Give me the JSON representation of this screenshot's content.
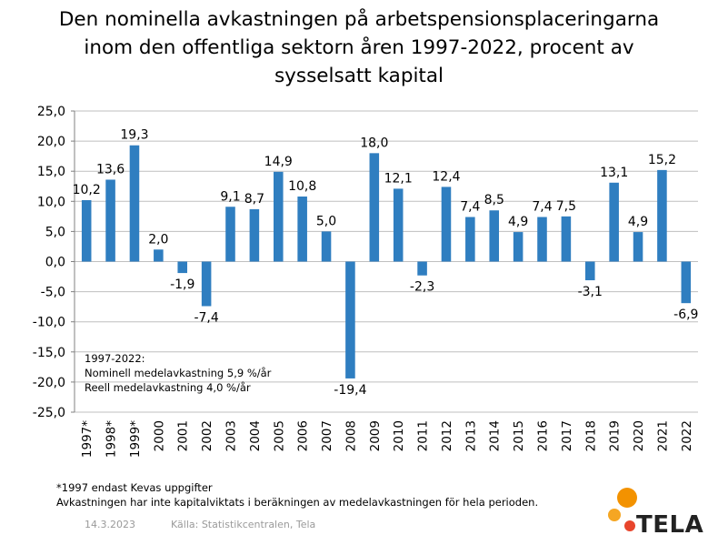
{
  "title_lines": [
    "Den nominella avkastningen på arbetspensionsplaceringarna",
    "inom den offentliga sektorn åren 1997-2022, procent av",
    "sysselsatt kapital"
  ],
  "annotation_lines": [
    "1997-2022:",
    "Nominell medelavkastning 5,9 %/år",
    "Reell medelavkastning 4,0 %/år"
  ],
  "footnote_lines": [
    "*1997 endast Kevas uppgifter",
    "Avkastningen har inte kapitalviktats i beräkningen av medelavkastningen för hela perioden."
  ],
  "date": "14.3.2023",
  "source": "Källa: Statistikcentralen, Tela",
  "logo_text": "TELA",
  "colors": {
    "bar": "#2f7ec0",
    "grid": "#bfbfbf",
    "logo_orange": "#f39200",
    "logo_red": "#e8452c"
  },
  "chart_data": {
    "type": "bar",
    "categories": [
      "1997*",
      "1998*",
      "1999*",
      "2000",
      "2001",
      "2002",
      "2003",
      "2004",
      "2005",
      "2006",
      "2007",
      "2008",
      "2009",
      "2010",
      "2011",
      "2012",
      "2013",
      "2014",
      "2015",
      "2016",
      "2017",
      "2018",
      "2019",
      "2020",
      "2021",
      "2022"
    ],
    "values": [
      10.2,
      13.6,
      19.3,
      2.0,
      -1.9,
      -7.4,
      9.1,
      8.7,
      14.9,
      10.8,
      5.0,
      -19.4,
      18.0,
      12.1,
      -2.3,
      12.4,
      7.4,
      8.5,
      4.9,
      7.4,
      7.5,
      -3.1,
      13.1,
      4.9,
      15.2,
      -6.9
    ],
    "value_labels": [
      "10,2",
      "13,6",
      "19,3",
      "2,0",
      "-1,9",
      "-7,4",
      "9,1",
      "8,7",
      "14,9",
      "10,8",
      "5,0",
      "-19,4",
      "18,0",
      "12,1",
      "-2,3",
      "12,4",
      "7,4",
      "8,5",
      "4,9",
      "7,4",
      "7,5",
      "-3,1",
      "13,1",
      "4,9",
      "15,2",
      "-6,9"
    ],
    "y_ticks": [
      "25,0",
      "20,0",
      "15,0",
      "10,0",
      "5,0",
      "0,0",
      "-5,0",
      "-10,0",
      "-15,0",
      "-20,0",
      "-25,0"
    ],
    "ylim": [
      -25,
      25
    ],
    "grid": true
  }
}
